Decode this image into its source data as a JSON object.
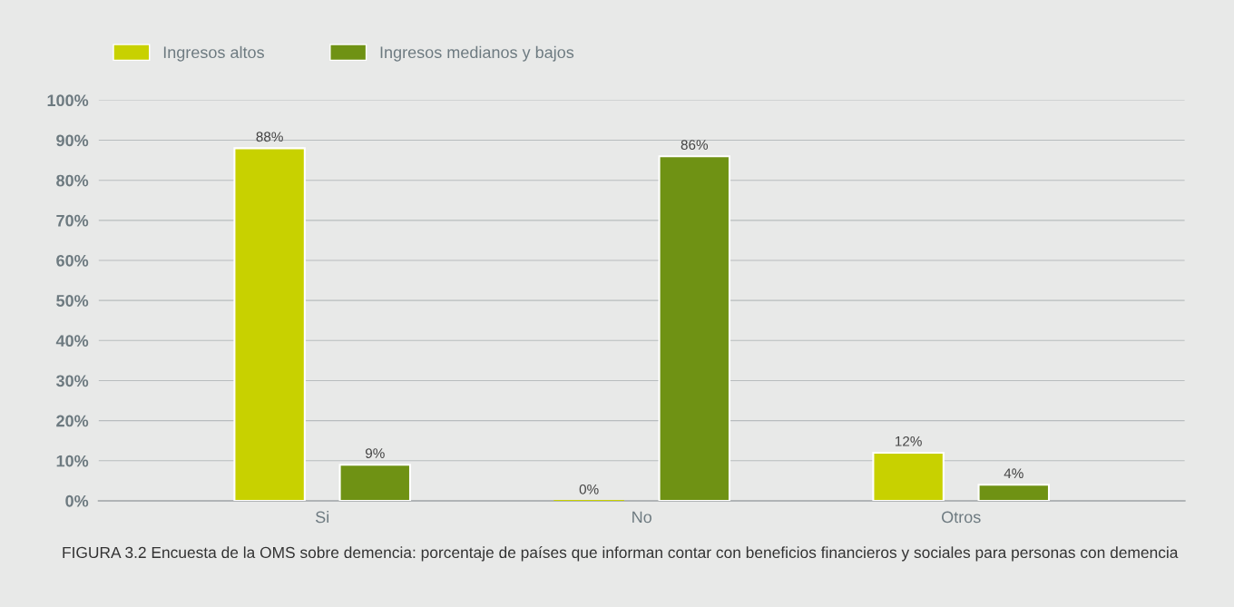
{
  "chart_data": {
    "type": "bar",
    "categories": [
      "Si",
      "No",
      "Otros"
    ],
    "series": [
      {
        "name": "Ingresos altos",
        "color": "#c8d100",
        "values": [
          88,
          0,
          12
        ]
      },
      {
        "name": "Ingresos medianos y bajos",
        "color": "#6f9214",
        "values": [
          9,
          86,
          4
        ]
      }
    ],
    "ylim": [
      0,
      100
    ],
    "yticks": [
      {
        "value": 0,
        "label": "0%"
      },
      {
        "value": 10,
        "label": "10%"
      },
      {
        "value": 20,
        "label": "20%"
      },
      {
        "value": 30,
        "label": "30%"
      },
      {
        "value": 40,
        "label": "40%"
      },
      {
        "value": 50,
        "label": "50%"
      },
      {
        "value": 60,
        "label": "60%"
      },
      {
        "value": 70,
        "label": "70%"
      },
      {
        "value": 80,
        "label": "80%"
      },
      {
        "value": 90,
        "label": "90%"
      },
      {
        "value": 100,
        "label": "100%"
      }
    ],
    "value_labels": [
      [
        "88%",
        "0%",
        "12%"
      ],
      [
        "9%",
        "86%",
        "4%"
      ]
    ],
    "grid": "y",
    "legend": "top left",
    "annotations": [
      "FIGURA 3.2 Encuesta de la OMS sobre demencia: porcentaje de países que informan contar con beneficios financieros y sociales para personas con demencia"
    ]
  }
}
